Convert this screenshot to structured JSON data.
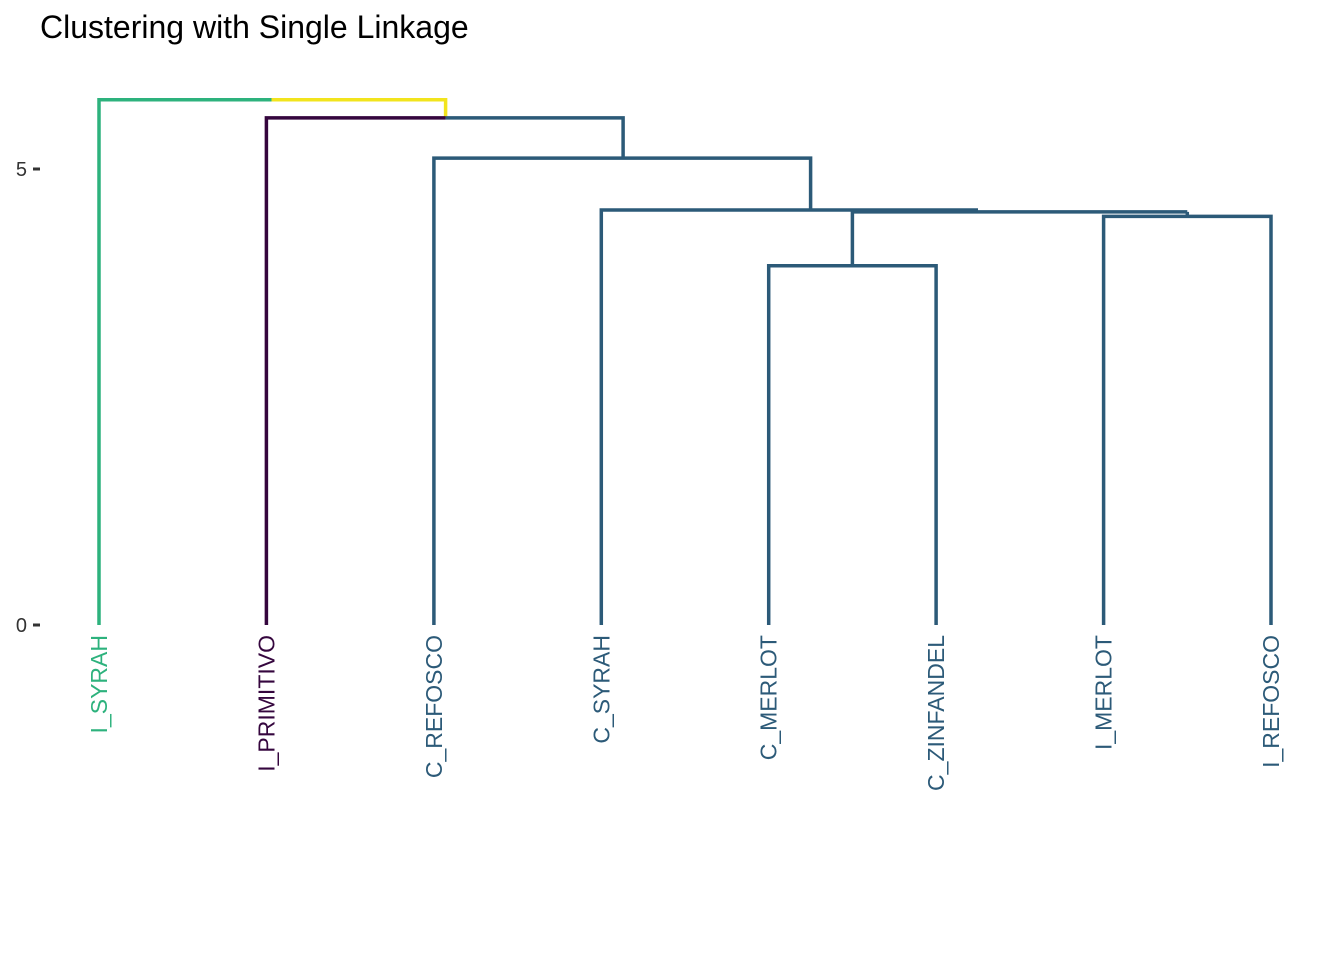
{
  "chart_data": {
    "type": "dendrogram",
    "title": "Clustering with Single Linkage",
    "xlabel": "",
    "ylabel": "",
    "ylim": [
      0,
      5.78
    ],
    "y_ticks": [
      {
        "value": 0,
        "label": "0"
      },
      {
        "value": 5,
        "label": "5"
      }
    ],
    "grid": false,
    "legend": "none",
    "colors": {
      "green": "#2db27d",
      "purple": "#35063e",
      "blue": "#2c5a78",
      "yellow": "#f2e41d"
    },
    "leaves": [
      {
        "label": "I_SYRAH",
        "color": "green"
      },
      {
        "label": "I_PRIMITIVO",
        "color": "purple"
      },
      {
        "label": "C_REFOSCO",
        "color": "blue"
      },
      {
        "label": "C_SYRAH",
        "color": "blue"
      },
      {
        "label": "C_MERLOT",
        "color": "blue"
      },
      {
        "label": "C_ZINFANDEL",
        "color": "blue"
      },
      {
        "label": "I_MERLOT",
        "color": "blue"
      },
      {
        "label": "I_REFOSCO",
        "color": "blue"
      }
    ],
    "segments": [
      {
        "x": [
          1,
          1,
          2.03
        ],
        "y": [
          0,
          5.76,
          5.76
        ],
        "color": "green"
      },
      {
        "x": [
          2.03,
          3.07,
          3.07
        ],
        "y": [
          5.76,
          5.76,
          5.56
        ],
        "color": "yellow"
      },
      {
        "x": [
          2,
          2,
          3.07
        ],
        "y": [
          0,
          5.56,
          5.56
        ],
        "color": "purple"
      },
      {
        "x": [
          3.07,
          4.13,
          4.13
        ],
        "y": [
          5.56,
          5.56,
          5.12
        ],
        "color": "blue"
      },
      {
        "x": [
          3,
          3,
          5.25,
          5.25
        ],
        "y": [
          0,
          5.12,
          5.12,
          4.55
        ],
        "color": "blue"
      },
      {
        "x": [
          4,
          4,
          6.25
        ],
        "y": [
          0,
          4.55,
          4.55
        ],
        "color": "blue"
      },
      {
        "x": [
          5.5,
          5.5,
          7.5
        ],
        "y": [
          3.94,
          4.53,
          4.53
        ],
        "color": "blue"
      },
      {
        "x": [
          5,
          5,
          6,
          6
        ],
        "y": [
          0,
          3.94,
          3.94,
          0
        ],
        "color": "blue"
      },
      {
        "x": [
          7,
          7,
          8,
          8
        ],
        "y": [
          0,
          4.48,
          4.48,
          0
        ],
        "color": "blue"
      },
      {
        "x": [
          7.5,
          7.5
        ],
        "y": [
          4.48,
          4.53
        ],
        "color": "blue"
      }
    ]
  }
}
